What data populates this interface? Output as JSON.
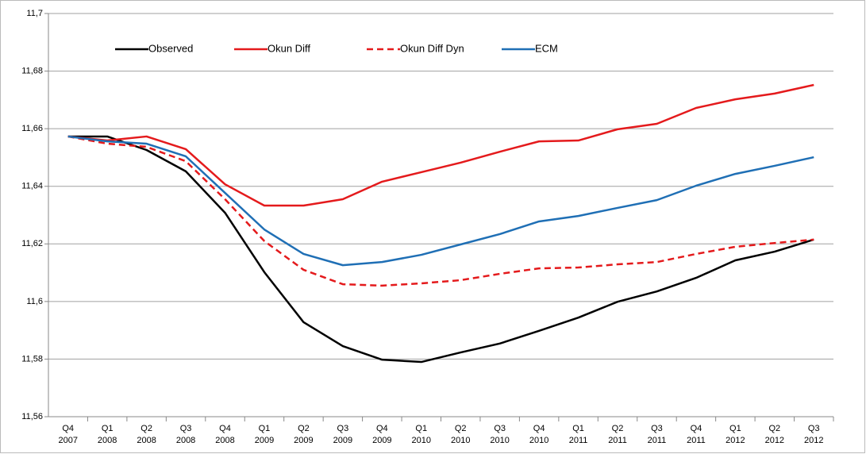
{
  "chart_data": {
    "type": "line",
    "categories": [
      [
        "Q4",
        "2007"
      ],
      [
        "Q1",
        "2008"
      ],
      [
        "Q2",
        "2008"
      ],
      [
        "Q3",
        "2008"
      ],
      [
        "Q4",
        "2008"
      ],
      [
        "Q1",
        "2009"
      ],
      [
        "Q2",
        "2009"
      ],
      [
        "Q3",
        "2009"
      ],
      [
        "Q4",
        "2009"
      ],
      [
        "Q1",
        "2010"
      ],
      [
        "Q2",
        "2010"
      ],
      [
        "Q3",
        "2010"
      ],
      [
        "Q4",
        "2010"
      ],
      [
        "Q1",
        "2011"
      ],
      [
        "Q2",
        "2011"
      ],
      [
        "Q3",
        "2011"
      ],
      [
        "Q4",
        "2011"
      ],
      [
        "Q1",
        "2012"
      ],
      [
        "Q2",
        "2012"
      ],
      [
        "Q3",
        "2012"
      ]
    ],
    "series": [
      {
        "name": "Observed",
        "color": "#000000",
        "dashed": false,
        "values": [
          11.6573,
          11.6573,
          11.6526,
          11.6452,
          11.6308,
          11.6102,
          11.5928,
          11.5845,
          11.5798,
          11.579,
          11.5823,
          11.5854,
          11.5898,
          11.5944,
          11.5999,
          11.6035,
          11.6082,
          11.6143,
          11.6173,
          11.6215
        ]
      },
      {
        "name": "Okun Diff",
        "color": "#e41a1c",
        "dashed": false,
        "values": [
          11.6573,
          11.6559,
          11.6573,
          11.6529,
          11.6407,
          11.6333,
          11.6333,
          11.6355,
          11.6416,
          11.6449,
          11.6482,
          11.652,
          11.6556,
          11.6559,
          11.6598,
          11.6617,
          11.6672,
          11.6702,
          11.6722,
          11.6752
        ]
      },
      {
        "name": "Okun Diff Dyn",
        "color": "#e41a1c",
        "dashed": true,
        "values": [
          11.6573,
          11.6548,
          11.6537,
          11.6487,
          11.6355,
          11.621,
          11.611,
          11.606,
          11.6055,
          11.6063,
          11.6074,
          11.6096,
          11.6115,
          11.6118,
          11.6129,
          11.6137,
          11.6165,
          11.619,
          11.6203,
          11.6215
        ]
      },
      {
        "name": "ECM",
        "color": "#1f6fb5",
        "dashed": false,
        "values": [
          11.6573,
          11.6556,
          11.6548,
          11.6504,
          11.6377,
          11.625,
          11.6165,
          11.6126,
          11.6137,
          11.6162,
          11.6198,
          11.6234,
          11.6278,
          11.6297,
          11.6325,
          11.6352,
          11.6402,
          11.6443,
          11.6471,
          11.6501
        ]
      }
    ],
    "ylim": [
      11.56,
      11.7
    ],
    "yticks": [
      {
        "value": 11.56,
        "label": "11,56"
      },
      {
        "value": 11.58,
        "label": "11,58"
      },
      {
        "value": 11.6,
        "label": "11,6"
      },
      {
        "value": 11.62,
        "label": "11,62"
      },
      {
        "value": 11.64,
        "label": "11,64"
      },
      {
        "value": 11.66,
        "label": "11,66"
      },
      {
        "value": 11.68,
        "label": "11,68"
      },
      {
        "value": 11.7,
        "label": "11,7"
      }
    ],
    "grid": true
  }
}
